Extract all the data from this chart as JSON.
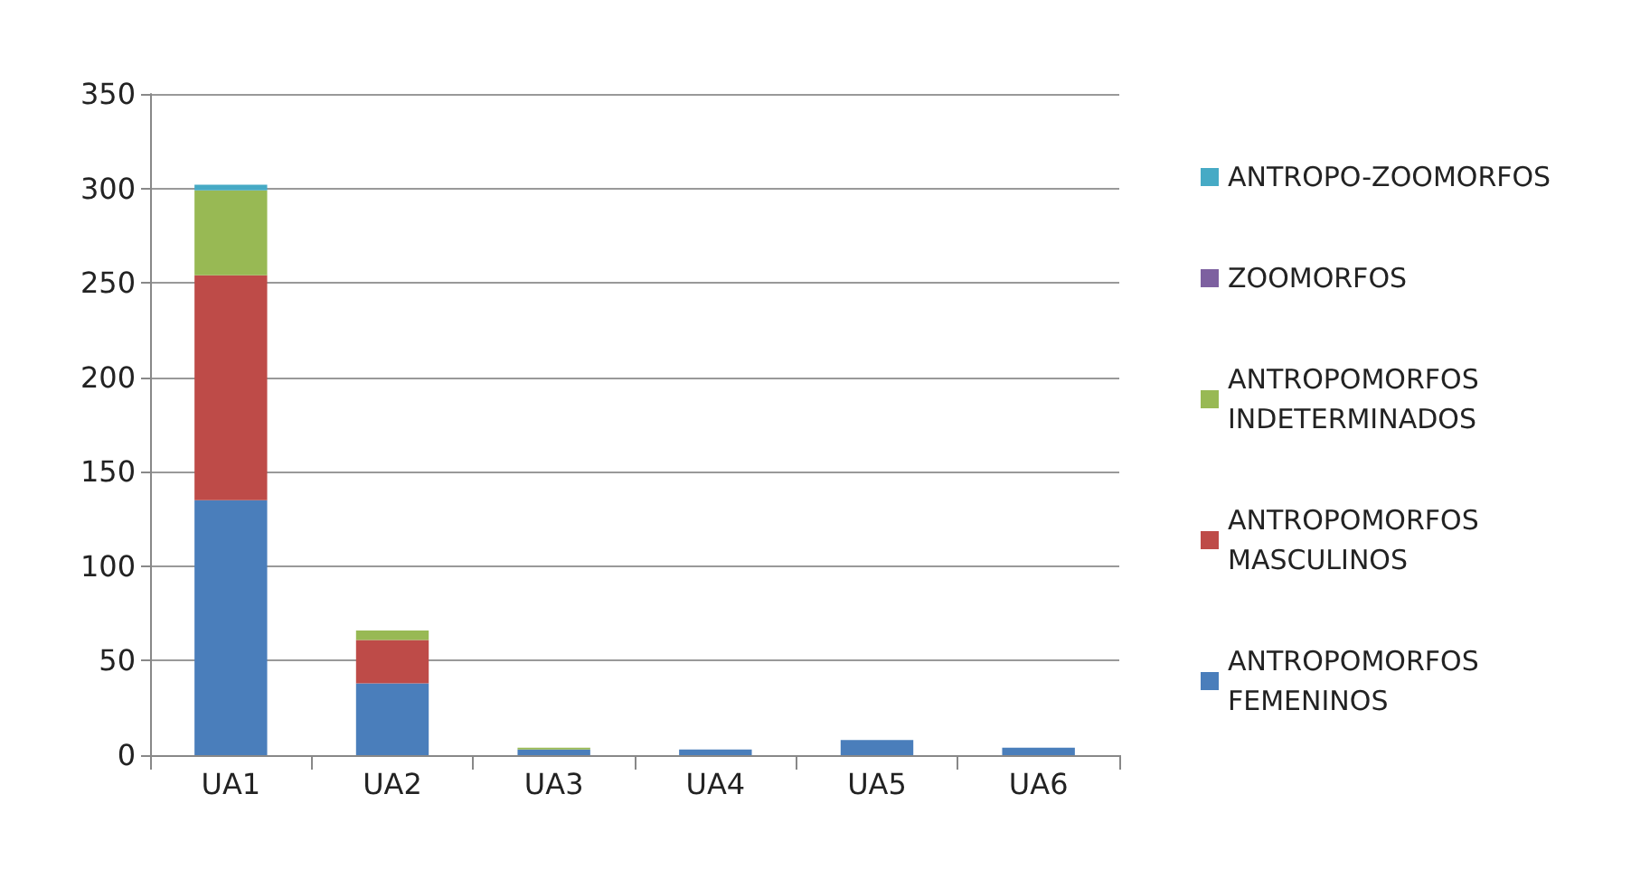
{
  "chart_data": {
    "type": "bar",
    "stacked": true,
    "categories": [
      "UA1",
      "UA2",
      "UA3",
      "UA4",
      "UA5",
      "UA6"
    ],
    "series": [
      {
        "name": "ANTROPOMORFOS FEMENINOS",
        "color": "#4a7ebb",
        "values": [
          135,
          38,
          3,
          3,
          8,
          4
        ]
      },
      {
        "name": "ANTROPOMORFOS MASCULINOS",
        "color": "#be4b48",
        "values": [
          119,
          23,
          0,
          0,
          0,
          0
        ]
      },
      {
        "name": "ANTROPOMORFOS INDETERMINADOS",
        "color": "#98b954",
        "values": [
          45,
          5,
          1,
          0,
          0,
          0
        ]
      },
      {
        "name": "ZOOMORFOS",
        "color": "#7d60a0",
        "values": [
          0,
          0,
          0,
          0,
          0,
          0
        ]
      },
      {
        "name": "ANTROPO-ZOOMORFOS",
        "color": "#46aac5",
        "values": [
          3,
          0,
          0,
          0,
          0,
          0
        ]
      }
    ],
    "ylim": [
      0,
      350
    ],
    "yticks": [
      0,
      50,
      100,
      150,
      200,
      250,
      300,
      350
    ],
    "grid": "y",
    "legend": "right"
  }
}
